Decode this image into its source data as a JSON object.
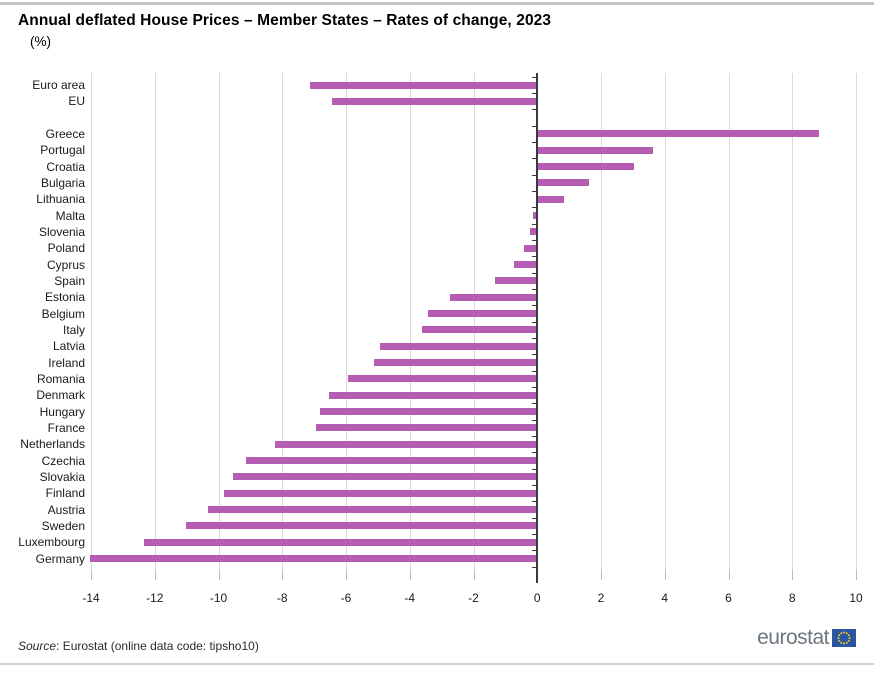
{
  "page": {
    "title": "Annual deflated House Prices – Member States – Rates of change, 2023",
    "subtitle": "(%)"
  },
  "source": {
    "prefix": "Source",
    "rest": ": Eurostat (online data code: tipsho10)"
  },
  "footer": {
    "logo_text": "eurostat"
  },
  "colors": {
    "bar": "#b55cb3",
    "gridline": "#dadada",
    "zero_line": "#3a3a3a",
    "logo_square": "#2a55a2",
    "logo_stars": "#f2cf1c",
    "logo_text": "#6d7680"
  },
  "chart_data": {
    "type": "bar",
    "orientation": "horizontal",
    "title": "Annual deflated House Prices – Member States – Rates of change, 2023",
    "unit": "(%)",
    "xlabel": "",
    "ylabel": "",
    "xlim": [
      -14,
      10
    ],
    "x_ticks": [
      -14,
      -12,
      -10,
      -8,
      -6,
      -4,
      -2,
      0,
      2,
      4,
      6,
      8,
      10
    ],
    "grid": true,
    "legend": false,
    "bar_color": "#b55cb3",
    "gap_after_index": 1,
    "categories": [
      "Euro area",
      "EU",
      "Greece",
      "Portugal",
      "Croatia",
      "Bulgaria",
      "Lithuania",
      "Malta",
      "Slovenia",
      "Poland",
      "Cyprus",
      "Spain",
      "Estonia",
      "Belgium",
      "Italy",
      "Latvia",
      "Ireland",
      "Romania",
      "Denmark",
      "Hungary",
      "France",
      "Netherlands",
      "Czechia",
      "Slovakia",
      "Finland",
      "Austria",
      "Sweden",
      "Luxembourg",
      "Germany"
    ],
    "values": [
      -7.1,
      -6.4,
      8.8,
      3.6,
      3.0,
      1.6,
      0.8,
      -0.1,
      -0.2,
      -0.4,
      -0.7,
      -1.3,
      -2.7,
      -3.4,
      -3.6,
      -4.9,
      -5.1,
      -5.9,
      -6.5,
      -6.8,
      -6.9,
      -8.2,
      -9.1,
      -9.5,
      -9.8,
      -10.3,
      -11.0,
      -12.3,
      -14.0
    ]
  }
}
